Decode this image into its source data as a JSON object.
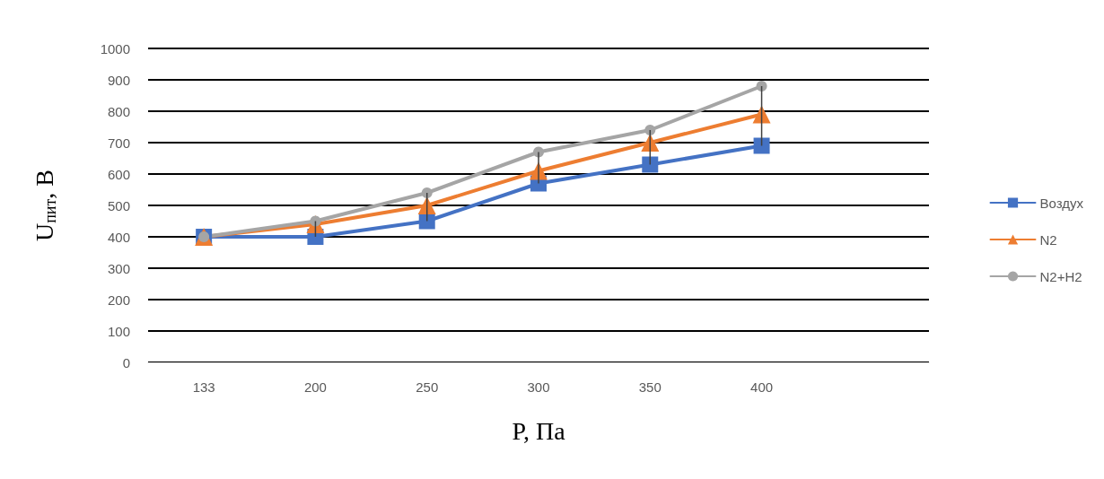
{
  "chart_data": {
    "type": "line",
    "xlabel": "P, Па",
    "ylabel": "U$_{пит}$, В",
    "categories": [
      "133",
      "200",
      "250",
      "300",
      "350",
      "400",
      null
    ],
    "series": [
      {
        "name": "Воздух",
        "color": "#4472c4",
        "marker": "square",
        "values": [
          400,
          400,
          450,
          570,
          630,
          690,
          null
        ]
      },
      {
        "name": "N2",
        "color": "#ed7d31",
        "marker": "triangle",
        "values": [
          400,
          440,
          500,
          610,
          700,
          790,
          null
        ]
      },
      {
        "name": "N2+H2",
        "color": "#a5a5a5",
        "marker": "circle",
        "values": [
          400,
          450,
          540,
          670,
          740,
          880,
          null
        ],
        "errors": [
          null,
          [
            400,
            450
          ],
          [
            450,
            540
          ],
          [
            570,
            670
          ],
          [
            630,
            740
          ],
          [
            690,
            880
          ],
          null
        ]
      }
    ],
    "ylim": [
      0,
      1000
    ],
    "yticks": [
      0,
      100,
      200,
      300,
      400,
      500,
      600,
      700,
      800,
      900,
      1000
    ],
    "grid": "y",
    "legend": "right",
    "line_style": "solid"
  }
}
